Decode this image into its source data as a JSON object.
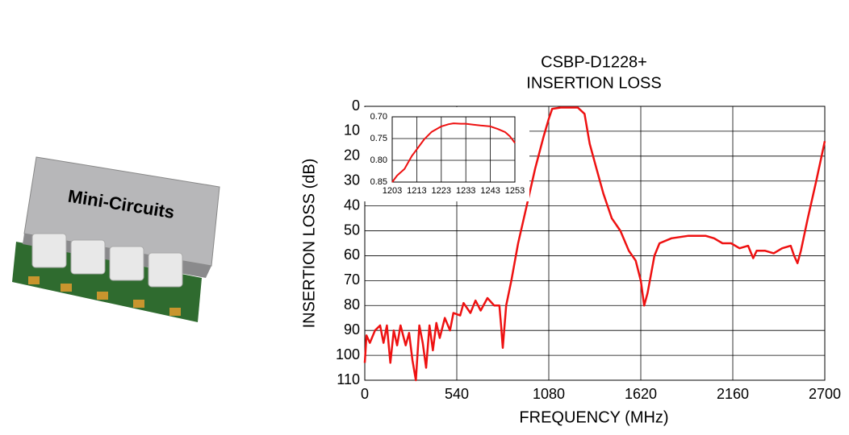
{
  "product": {
    "brand": "Mini-Circuits"
  },
  "chart_data": {
    "type": "line",
    "title": "CSBP-D1228+",
    "subtitle": "INSERTION LOSS",
    "x_label": "FREQUENCY (MHz)",
    "y_label": "INSERTION LOSS (dB)",
    "xlim": [
      0,
      2700
    ],
    "xticks": [
      0,
      540,
      1080,
      1620,
      2160,
      2700
    ],
    "ylim": [
      0,
      110
    ],
    "y_inverted": true,
    "yticks": [
      0,
      10,
      20,
      30,
      40,
      50,
      60,
      70,
      80,
      90,
      100,
      110
    ],
    "grid": true,
    "series": [
      {
        "name": "CSBP-D1228+",
        "color": "#ee1111",
        "x": [
          0,
          10,
          30,
          60,
          90,
          110,
          130,
          150,
          170,
          190,
          210,
          240,
          260,
          280,
          300,
          320,
          340,
          360,
          380,
          400,
          420,
          440,
          470,
          500,
          520,
          560,
          580,
          620,
          650,
          680,
          720,
          760,
          790,
          800,
          810,
          830,
          860,
          900,
          950,
          1000,
          1050,
          1080,
          1100,
          1150,
          1250,
          1290,
          1320,
          1360,
          1400,
          1450,
          1500,
          1550,
          1590,
          1620,
          1640,
          1660,
          1700,
          1730,
          1800,
          1900,
          2000,
          2050,
          2100,
          2150,
          2200,
          2250,
          2280,
          2300,
          2350,
          2400,
          2450,
          2500,
          2520,
          2540,
          2560,
          2600,
          2650,
          2700
        ],
        "values": [
          103,
          92,
          95,
          90,
          88,
          95,
          88,
          103,
          90,
          96,
          88,
          96,
          91,
          102,
          110,
          88,
          95,
          105,
          88,
          98,
          87,
          93,
          85,
          90,
          83,
          84,
          79,
          83,
          78,
          82,
          77,
          80,
          80,
          88,
          97,
          80,
          70,
          55,
          40,
          25,
          12,
          5,
          1,
          0.5,
          0.5,
          3,
          15,
          25,
          35,
          45,
          50,
          58,
          62,
          70,
          80,
          75,
          60,
          55,
          53,
          52,
          52,
          53,
          55,
          55,
          57,
          56,
          61,
          58,
          58,
          59,
          57,
          56,
          60,
          63,
          58,
          45,
          30,
          14
        ]
      }
    ],
    "inset": {
      "xlim": [
        1203,
        1253
      ],
      "xticks": [
        1203,
        1213,
        1223,
        1233,
        1243,
        1253
      ],
      "ylim": [
        0.7,
        0.85
      ],
      "y_inverted": true,
      "yticks": [
        {
          "value": 0.7,
          "label": "0.70"
        },
        {
          "value": 0.75,
          "label": "0.75"
        },
        {
          "value": 0.8,
          "label": "0.80"
        },
        {
          "value": 0.85,
          "label": "0.85"
        }
      ],
      "x": [
        1203,
        1205,
        1208,
        1211,
        1213,
        1216,
        1219,
        1223,
        1226,
        1228,
        1231,
        1233,
        1236,
        1239,
        1243,
        1246,
        1249,
        1251,
        1253
      ],
      "values": [
        0.85,
        0.835,
        0.82,
        0.79,
        0.775,
        0.752,
        0.735,
        0.722,
        0.717,
        0.715,
        0.716,
        0.716,
        0.718,
        0.72,
        0.722,
        0.728,
        0.735,
        0.745,
        0.76
      ]
    }
  }
}
